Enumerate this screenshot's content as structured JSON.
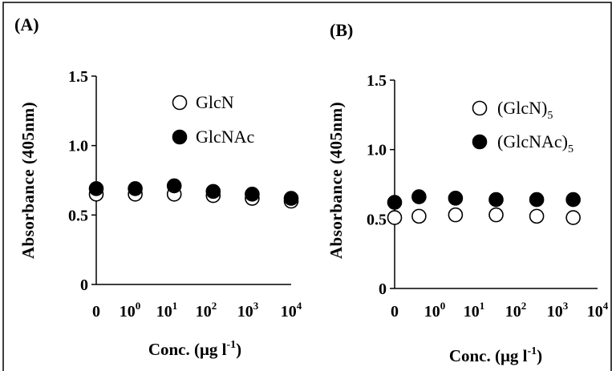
{
  "chart_data": [
    {
      "type": "scatter",
      "panel_label": "(A)",
      "ylabel": "Absorbance (405nm)",
      "xlabel": {
        "main": "Conc. (μg l",
        "sup": "-1",
        "close": ")"
      },
      "categories": [
        "0",
        "10^0",
        "10^1",
        "10^2",
        "10^3",
        "10^4"
      ],
      "x_ticks": [
        {
          "base": "0",
          "exp": ""
        },
        {
          "base": "10",
          "exp": "0"
        },
        {
          "base": "10",
          "exp": "1"
        },
        {
          "base": "10",
          "exp": "2"
        },
        {
          "base": "10",
          "exp": "3"
        },
        {
          "base": "10",
          "exp": "4"
        }
      ],
      "y_ticks": [
        "0",
        "0.5",
        "1.0",
        "1.5"
      ],
      "ylim": [
        0,
        1.5
      ],
      "grid": false,
      "legend_position": "top-right",
      "series": [
        {
          "name": "GlcN",
          "name_parts": {
            "main": "GlcN",
            "sub": ""
          },
          "marker": "open-circle",
          "x": [
            0,
            1,
            2,
            3,
            4,
            5
          ],
          "values": [
            0.65,
            0.65,
            0.65,
            0.64,
            0.62,
            0.6
          ]
        },
        {
          "name": "GlcNAc",
          "name_parts": {
            "main": "GlcNAc",
            "sub": ""
          },
          "marker": "filled-circle",
          "x": [
            0,
            1,
            2,
            3,
            4,
            5
          ],
          "values": [
            0.69,
            0.69,
            0.71,
            0.67,
            0.65,
            0.62
          ]
        }
      ]
    },
    {
      "type": "scatter",
      "panel_label": "(B)",
      "ylabel": "Absorbance (405nm)",
      "xlabel": {
        "main": "Conc. (μg l",
        "sup": "-1",
        "close": ")"
      },
      "categories": [
        "0",
        "10^0",
        "10^1",
        "10^2",
        "10^3",
        "10^4"
      ],
      "x_ticks": [
        {
          "base": "0",
          "exp": ""
        },
        {
          "base": "10",
          "exp": "0"
        },
        {
          "base": "10",
          "exp": "1"
        },
        {
          "base": "10",
          "exp": "2"
        },
        {
          "base": "10",
          "exp": "3"
        },
        {
          "base": "10",
          "exp": "4"
        }
      ],
      "y_ticks": [
        "0",
        "0.5",
        "1.0",
        "1.5"
      ],
      "ylim": [
        0,
        1.5
      ],
      "grid": false,
      "legend_position": "top-right",
      "series": [
        {
          "name": "(GlcN)5",
          "name_parts": {
            "main": "(GlcN)",
            "sub": "5"
          },
          "marker": "open-circle",
          "x": [
            0,
            0.6,
            1.5,
            2.5,
            3.5,
            4.4
          ],
          "values": [
            0.51,
            0.52,
            0.53,
            0.53,
            0.52,
            0.51
          ]
        },
        {
          "name": "(GlcNAc)5",
          "name_parts": {
            "main": "(GlcNAc)",
            "sub": "5"
          },
          "marker": "filled-circle",
          "x": [
            0,
            0.6,
            1.5,
            2.5,
            3.5,
            4.4
          ],
          "values": [
            0.62,
            0.66,
            0.65,
            0.64,
            0.64,
            0.64
          ]
        }
      ]
    }
  ]
}
